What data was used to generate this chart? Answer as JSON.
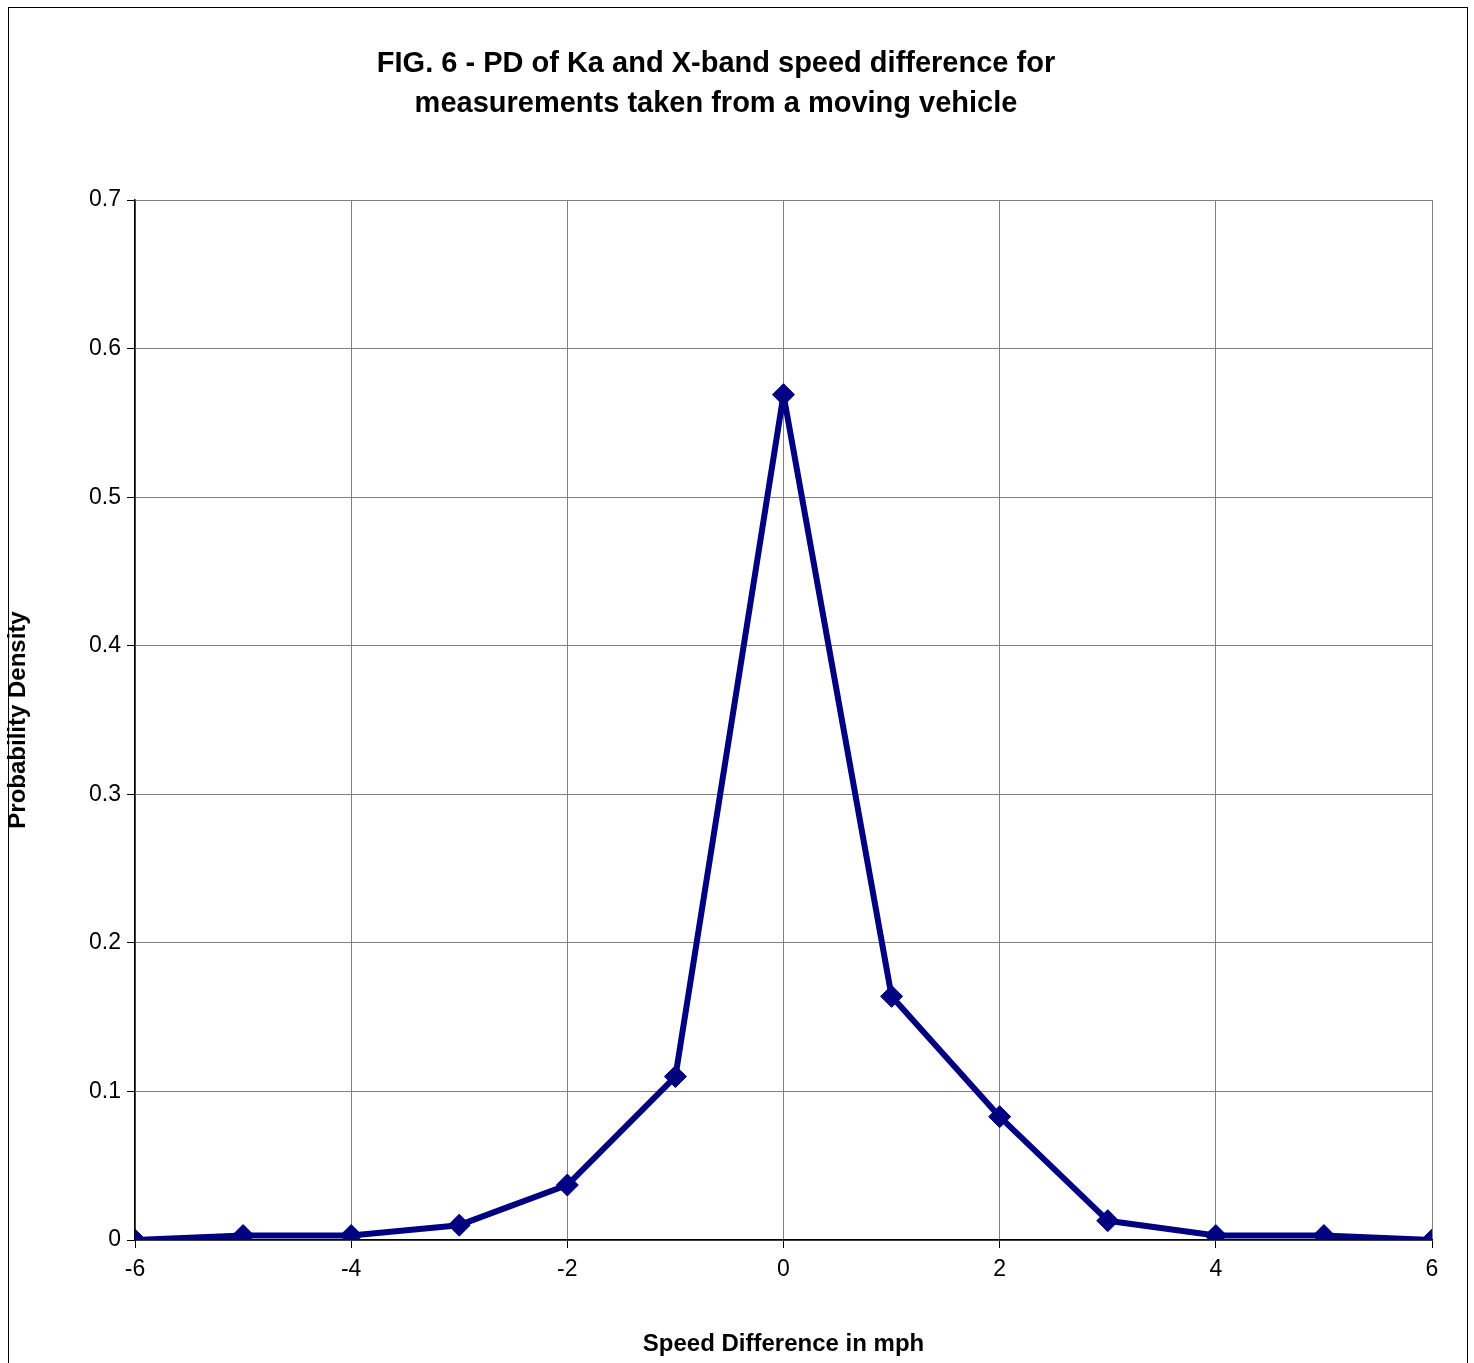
{
  "chart_data": {
    "type": "line",
    "title": "FIG. 6 - PD of Ka and X-band speed difference for\nmeasurements taken from a moving vehicle",
    "xlabel": "Speed Difference in mph",
    "ylabel": "Probability Density",
    "x": [
      -6,
      -5,
      -4,
      -3,
      -2,
      -1,
      0,
      1,
      2,
      3,
      4,
      5,
      6
    ],
    "series": [
      {
        "color": "#000080",
        "values": [
          0,
          0.003,
          0.003,
          0.01,
          0.037,
          0.11,
          0.569,
          0.164,
          0.083,
          0.013,
          0.003,
          0.003,
          0
        ]
      }
    ],
    "xlim": [
      -6,
      6
    ],
    "xticks": [
      -6,
      -4,
      -2,
      0,
      2,
      4,
      6
    ],
    "ylim": [
      0,
      0.7
    ],
    "yticks": [
      0,
      0.1,
      0.2,
      0.3,
      0.4,
      0.5,
      0.6,
      0.7
    ],
    "grid": true,
    "legend": false,
    "marker": "diamond",
    "line_style": "solid"
  }
}
